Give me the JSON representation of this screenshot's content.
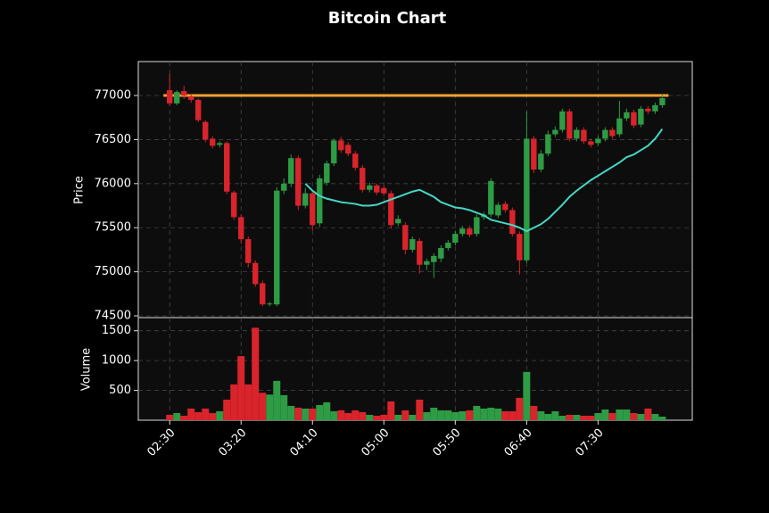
{
  "chart_data": {
    "type": "candlestick",
    "title": "Bitcoin Chart",
    "ylabel": "Price",
    "x": [
      "02:30",
      "02:35",
      "02:40",
      "02:45",
      "02:50",
      "02:55",
      "03:00",
      "03:05",
      "03:10",
      "03:15",
      "03:20",
      "03:25",
      "03:30",
      "03:35",
      "03:40",
      "03:45",
      "03:50",
      "03:55",
      "04:00",
      "04:05",
      "04:10",
      "04:15",
      "04:20",
      "04:25",
      "04:30",
      "04:35",
      "04:40",
      "04:45",
      "04:50",
      "04:55",
      "05:00",
      "05:05",
      "05:10",
      "05:15",
      "05:20",
      "05:25",
      "05:30",
      "05:35",
      "05:40",
      "05:45",
      "05:50",
      "05:55",
      "06:00",
      "06:05",
      "06:10",
      "06:15",
      "06:20",
      "06:25",
      "06:30",
      "06:35",
      "06:40",
      "06:45",
      "06:50",
      "06:55",
      "07:00",
      "07:05",
      "07:10",
      "07:15",
      "07:20",
      "07:25",
      "07:30",
      "07:35",
      "07:40",
      "07:45",
      "07:50",
      "07:55",
      "08:00",
      "08:05",
      "08:10",
      "08:15"
    ],
    "xlim": [
      "02:08",
      "08:36"
    ],
    "xticks": [
      "02:30",
      "03:20",
      "04:10",
      "05:00",
      "05:50",
      "06:40",
      "07:30"
    ],
    "open": [
      77060,
      76910,
      77050,
      76990,
      76950,
      76700,
      76510,
      76440,
      76460,
      75900,
      75620,
      75370,
      75100,
      74870,
      74630,
      74630,
      75920,
      76000,
      76290,
      75750,
      75890,
      75550,
      76010,
      76230,
      76490,
      76440,
      76340,
      76180,
      75930,
      75980,
      75950,
      75890,
      75550,
      75530,
      75250,
      75350,
      75080,
      75110,
      75150,
      75270,
      75330,
      75430,
      75490,
      75430,
      75620,
      75650,
      75640,
      75770,
      75700,
      75430,
      75130,
      76510,
      76160,
      76340,
      76560,
      76610,
      76820,
      76510,
      76610,
      76480,
      76460,
      76510,
      76610,
      76560,
      76740,
      76810,
      76670,
      76850,
      76820,
      76890
    ],
    "high": [
      77250,
      77060,
      77110,
      77020,
      76970,
      76720,
      76540,
      76480,
      76480,
      75920,
      75650,
      75400,
      75130,
      74900,
      74660,
      75960,
      76060,
      76330,
      76320,
      75950,
      75920,
      76100,
      76260,
      76510,
      76530,
      76470,
      76370,
      76210,
      76010,
      76000,
      75980,
      75920,
      75640,
      75560,
      75400,
      75380,
      75150,
      75210,
      75300,
      75360,
      75460,
      75520,
      75520,
      75650,
      75680,
      76060,
      75790,
      75800,
      75730,
      75460,
      76820,
      76540,
      76380,
      76600,
      76650,
      76850,
      76850,
      76640,
      76640,
      76510,
      76540,
      76640,
      76640,
      76940,
      76850,
      76840,
      76880,
      76880,
      76920,
      77020
    ],
    "low": [
      76880,
      76890,
      76960,
      76920,
      76700,
      76470,
      76400,
      76410,
      75880,
      75590,
      75320,
      75050,
      74830,
      74610,
      74610,
      74610,
      75880,
      75960,
      75700,
      75720,
      75470,
      75510,
      75980,
      76200,
      76350,
      76310,
      76150,
      75900,
      75900,
      75870,
      75860,
      75490,
      75520,
      75200,
      75220,
      74980,
      75020,
      74930,
      75110,
      75240,
      75300,
      75400,
      75390,
      75400,
      75590,
      75620,
      75610,
      75670,
      75400,
      74970,
      75100,
      76120,
      76130,
      76310,
      76530,
      76580,
      76480,
      76480,
      76450,
      76410,
      76430,
      76480,
      76510,
      76530,
      76710,
      76630,
      76640,
      76790,
      76790,
      76860
    ],
    "close": [
      76910,
      77040,
      77000,
      76950,
      76720,
      76500,
      76430,
      76460,
      75910,
      75620,
      75370,
      75100,
      74860,
      74630,
      74640,
      75920,
      76000,
      76290,
      75750,
      75890,
      75530,
      76060,
      76230,
      76490,
      76380,
      76340,
      76180,
      75930,
      75980,
      75900,
      75890,
      75530,
      75600,
      75250,
      75370,
      75080,
      75120,
      75180,
      75270,
      75330,
      75430,
      75490,
      75420,
      75620,
      75650,
      76030,
      75760,
      75700,
      75430,
      75130,
      76510,
      76160,
      76340,
      76560,
      76610,
      76820,
      76510,
      76610,
      76480,
      76440,
      76510,
      76610,
      76540,
      76740,
      76810,
      76660,
      76850,
      76820,
      76890,
      76970
    ],
    "up_color": "#2e9b45",
    "down_color": "#d9242b",
    "ylim": [
      74480,
      77385
    ],
    "yticks": [
      74500,
      75000,
      75500,
      76000,
      76500,
      77000
    ],
    "grid": true,
    "hline": {
      "value": 77000,
      "color": "#f2a133"
    },
    "ma": {
      "color": "#45d6c3",
      "values": [
        null,
        null,
        null,
        null,
        null,
        null,
        null,
        null,
        null,
        null,
        null,
        null,
        null,
        null,
        null,
        null,
        null,
        null,
        null,
        76000,
        75920,
        75860,
        75830,
        75810,
        75790,
        75780,
        75770,
        75750,
        75750,
        75760,
        75790,
        75820,
        75850,
        75880,
        75910,
        75930,
        75890,
        75850,
        75790,
        75760,
        75730,
        75720,
        75700,
        75670,
        75640,
        75590,
        75570,
        75550,
        75530,
        75500,
        75460,
        75500,
        75540,
        75600,
        75680,
        75760,
        75850,
        75920,
        75980,
        76040,
        76090,
        76140,
        76190,
        76240,
        76300,
        76330,
        76380,
        76430,
        76510,
        76620
      ]
    },
    "volume": {
      "ylabel": "Volume",
      "ylim": [
        0,
        1720
      ],
      "yticks": [
        500,
        1000,
        1500
      ],
      "values": [
        90,
        120,
        75,
        195,
        135,
        195,
        120,
        150,
        345,
        600,
        1075,
        600,
        1550,
        460,
        430,
        660,
        420,
        240,
        210,
        195,
        195,
        255,
        300,
        150,
        165,
        120,
        165,
        135,
        90,
        75,
        90,
        315,
        90,
        165,
        90,
        345,
        135,
        210,
        165,
        165,
        135,
        150,
        165,
        240,
        195,
        210,
        195,
        150,
        150,
        375,
        810,
        240,
        150,
        105,
        150,
        75,
        90,
        90,
        75,
        75,
        120,
        180,
        120,
        180,
        180,
        120,
        105,
        195,
        105,
        60
      ]
    }
  }
}
